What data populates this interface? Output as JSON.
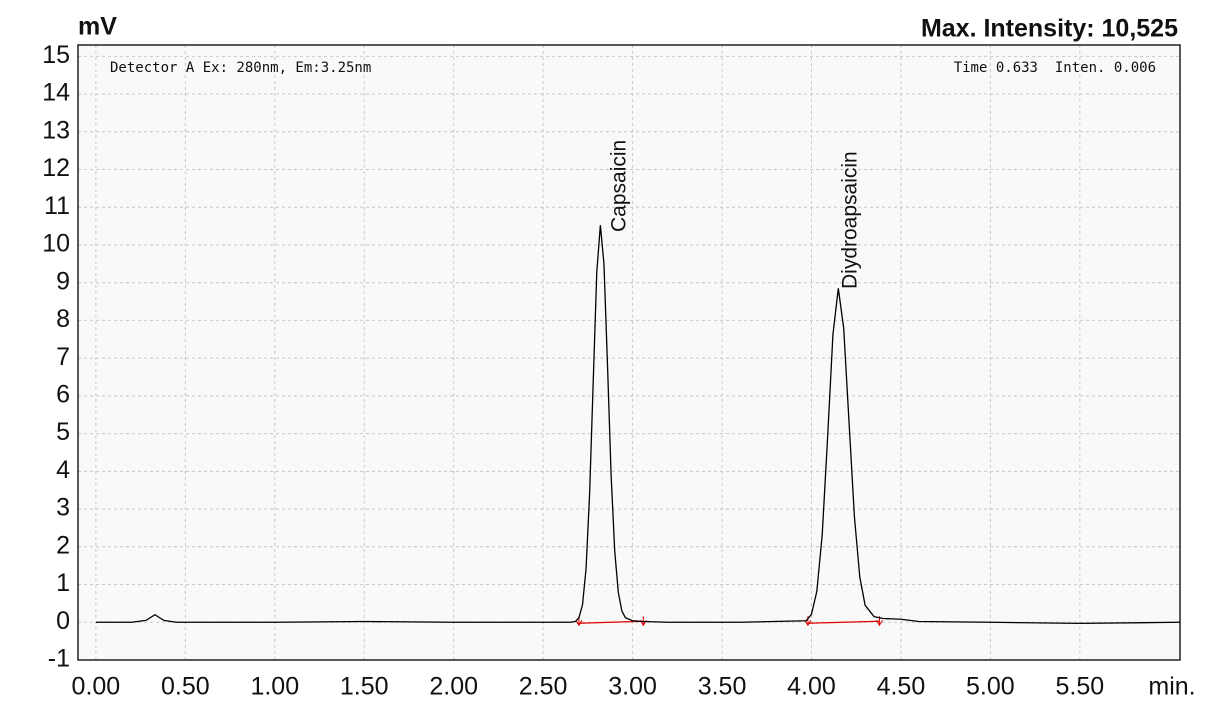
{
  "chart_data": {
    "type": "line",
    "y_label": "mV",
    "header_right": "Max. Intensity: 10,525",
    "detector": "Detector A Ex: 280nm, Em:3.25nm",
    "cursor": "Time 0.633  Inten. 0.006",
    "x_label": "min.",
    "annotations": [
      "Capsaicin",
      "Diydroapsaicin"
    ],
    "color": "#000000",
    "x": [
      0,
      0.2,
      0.28,
      0.33,
      0.38,
      0.45,
      1,
      1.5,
      2,
      2.5,
      2.65,
      2.68,
      2.7,
      2.72,
      2.74,
      2.76,
      2.78,
      2.8,
      2.82,
      2.84,
      2.86,
      2.88,
      2.9,
      2.92,
      2.94,
      2.96,
      3.0,
      3.06,
      3.2,
      3.6,
      3.97,
      4.0,
      4.03,
      4.06,
      4.09,
      4.12,
      4.15,
      4.18,
      4.21,
      4.24,
      4.27,
      4.3,
      4.35,
      4.4,
      4.5,
      4.6,
      5,
      5.5,
      6.06
    ],
    "values": [
      0,
      0,
      0.05,
      0.2,
      0.05,
      0,
      0,
      0.02,
      0,
      0,
      0,
      0.02,
      0.12,
      0.46,
      1.42,
      3.42,
      6.38,
      9.29,
      10.525,
      9.5,
      6.8,
      3.9,
      1.9,
      0.8,
      0.3,
      0.12,
      0.04,
      0.02,
      0,
      0,
      0.04,
      0.21,
      0.82,
      2.32,
      4.88,
      7.63,
      8.85,
      7.8,
      5.3,
      2.8,
      1.2,
      0.45,
      0.15,
      0.1,
      0.08,
      0.02,
      0,
      -0.03,
      0
    ],
    "baselines": [
      [
        2.7,
        3.06
      ],
      [
        3.98,
        4.38
      ]
    ],
    "baseline_color": "#e00000",
    "xlim": [
      -0.1,
      6.06
    ],
    "ylim": [
      -1,
      15.3
    ],
    "xticks": [
      {
        "value": 0,
        "label": "0.00"
      },
      {
        "value": 0.5,
        "label": "0.50"
      },
      {
        "value": 1,
        "label": "1.00"
      },
      {
        "value": 1.5,
        "label": "1.50"
      },
      {
        "value": 2,
        "label": "2.00"
      },
      {
        "value": 2.5,
        "label": "2.50"
      },
      {
        "value": 3,
        "label": "3.00"
      },
      {
        "value": 3.5,
        "label": "3.50"
      },
      {
        "value": 4,
        "label": "4.00"
      },
      {
        "value": 4.5,
        "label": "4.50"
      },
      {
        "value": 5,
        "label": "5.00"
      },
      {
        "value": 5.5,
        "label": "5.50"
      }
    ],
    "yticks": [
      -1,
      0,
      1,
      2,
      3,
      4,
      5,
      6,
      7,
      8,
      9,
      10,
      11,
      12,
      13,
      14,
      15
    ],
    "grid": true
  }
}
